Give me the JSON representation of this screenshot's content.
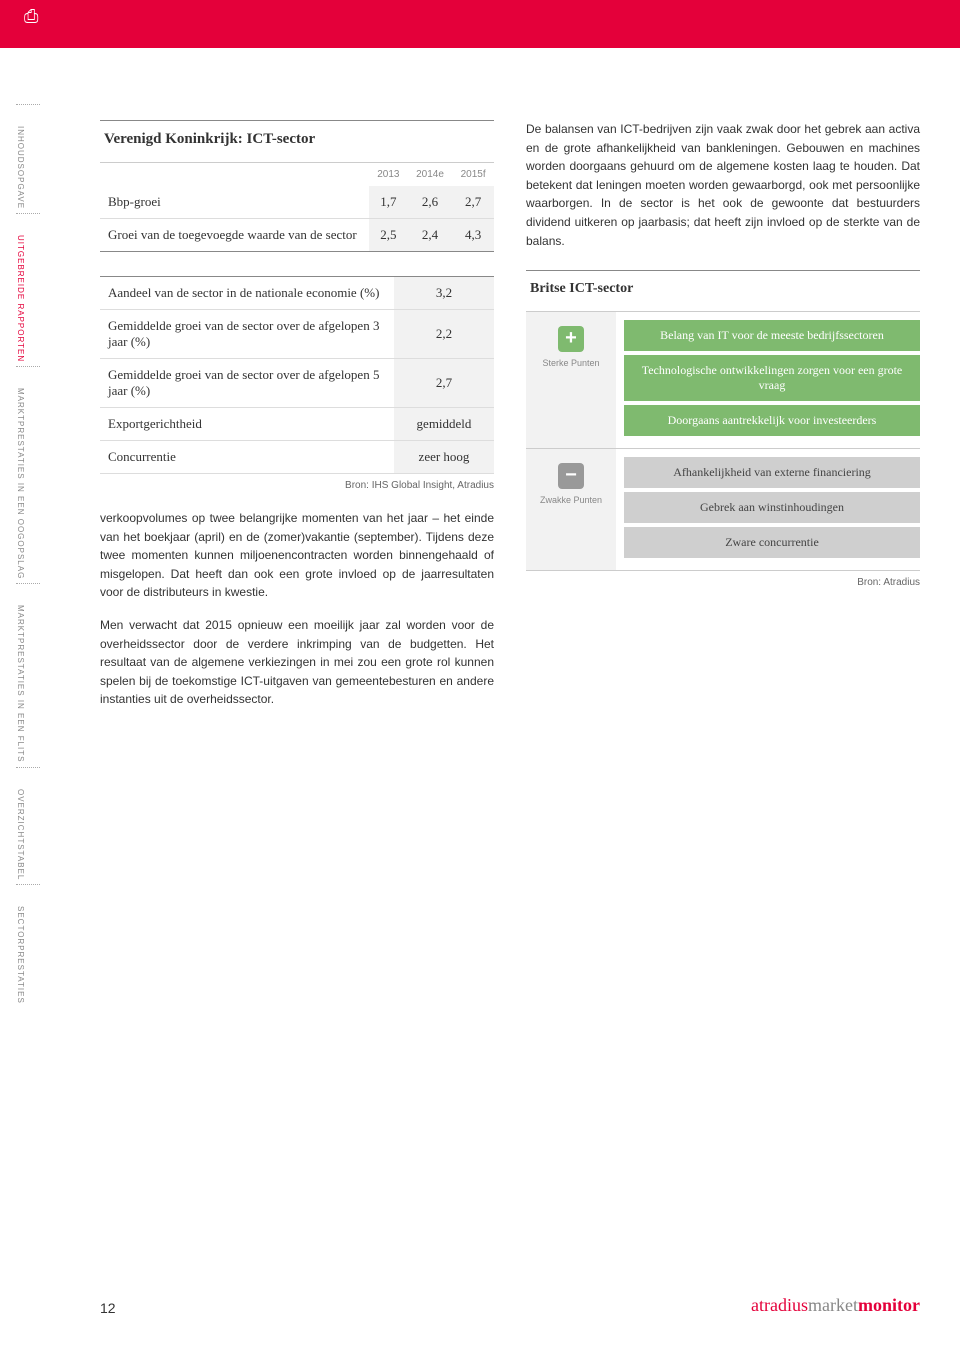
{
  "header": {
    "print_icon_glyph": "⎙"
  },
  "side_nav": [
    {
      "label": "INHOUDSOPGAVE",
      "cls": ""
    },
    {
      "label": "UITGEBREIDE RAPPORTEN",
      "cls": "red"
    },
    {
      "label": "MARKTPRESTATIES IN EEN OOGOPSLAG",
      "cls": ""
    },
    {
      "label": "MARKTPRESTATIES IN EEN FLITS",
      "cls": ""
    },
    {
      "label": "OVERZICHTSTABEL",
      "cls": ""
    },
    {
      "label": "SECTORPRESTATIES",
      "cls": ""
    }
  ],
  "table1": {
    "title": "Verenigd Koninkrijk: ICT-sector",
    "headers": [
      "",
      "2013",
      "2014e",
      "2015f"
    ],
    "rows": [
      {
        "label": "Bbp-groei",
        "v": [
          "1,7",
          "2,6",
          "2,7"
        ]
      },
      {
        "label": "Groei van de toegevoegde waarde van de sector",
        "v": [
          "2,5",
          "2,4",
          "4,3"
        ]
      }
    ]
  },
  "table2": {
    "rows": [
      {
        "label": "Aandeel van de sector in de nationale economie (%)",
        "val": "3,2"
      },
      {
        "label": "Gemiddelde groei van de sector over de afgelopen 3 jaar (%)",
        "val": "2,2"
      },
      {
        "label": "Gemiddelde groei van de sector over de afgelopen 5 jaar (%)",
        "val": "2,7"
      },
      {
        "label": "Exportgerichtheid",
        "val": "gemiddeld"
      },
      {
        "label": "Concurrentie",
        "val": "zeer hoog"
      }
    ],
    "source": "Bron: IHS Global Insight, Atradius"
  },
  "body": {
    "p1": "verkoopvolumes op twee belangrijke momenten van het jaar – het einde van het boekjaar (april) en de (zomer)vakantie (september). Tijdens deze twee momenten kunnen miljoenencontracten worden binnengehaald of misgelopen. Dat heeft dan ook een grote invloed op de jaarresultaten voor de distributeurs in kwestie.",
    "p2": "Men verwacht dat 2015 opnieuw een moeilijk jaar zal worden voor de overheidssector door de verdere inkrimping van de budgetten. Het resultaat van de algemene verkiezingen in mei zou een grote rol kunnen spelen bij de toekomstige ICT-uitgaven van gemeentebesturen en andere instanties uit de overheidssector."
  },
  "right_para": "De balansen van ICT-bedrijven zijn vaak zwak door het gebrek aan activa en de grote afhankelijkheid van bankleningen. Gebouwen en machines worden doorgaans gehuurd om de algemene kosten laag te houden. Dat betekent dat leningen moeten worden gewaarborgd, ook met persoonlijke waarborgen. In de sector is het ook de gewoonte dat bestuurders dividend uitkeren op jaarbasis; dat heeft zijn invloed op de sterkte van de balans.",
  "swot": {
    "title": "Britse ICT-sector",
    "strong_label": "Sterke Punten",
    "weak_label": "Zwakke Punten",
    "strong": [
      "Belang van IT voor de meeste bedrijfssectoren",
      "Technologische ontwikkelingen zorgen voor een grote vraag",
      "Doorgaans aantrekkelijk voor investeerders"
    ],
    "weak": [
      "Afhankelijkheid van externe financiering",
      "Gebrek aan winstinhoudingen",
      "Zware concurrentie"
    ],
    "source": "Bron: Atradius"
  },
  "footer": {
    "page": "12",
    "brand_a": "atradius",
    "brand_b": "market",
    "brand_c": "monitor"
  },
  "colors": {
    "brand_red": "#e4003a",
    "swot_green": "#7fba6f",
    "swot_grey": "#cfcfcf",
    "shade_bg": "#f2f2f2"
  }
}
